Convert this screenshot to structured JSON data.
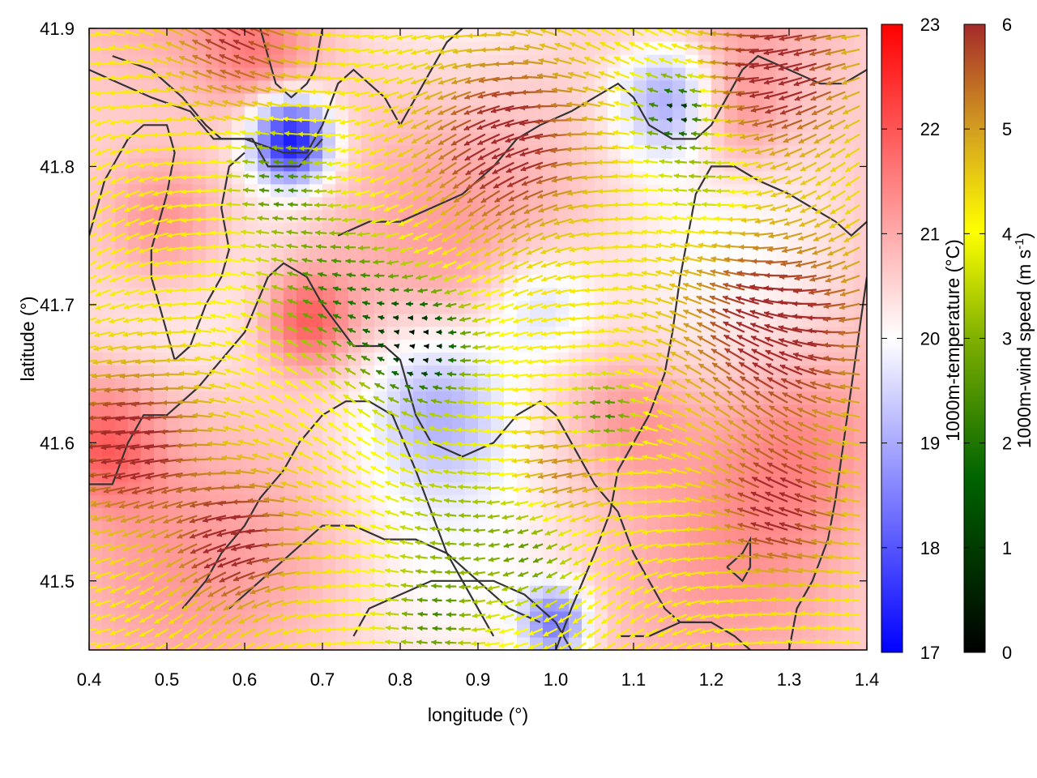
{
  "chart_data": {
    "type": "heatmap",
    "title": "",
    "xlabel": "longitude (°)",
    "ylabel": "latitude (°)",
    "xlim": [
      0.4,
      1.4
    ],
    "ylim": [
      41.45,
      41.9
    ],
    "x_ticks": [
      "0.4",
      "0.5",
      "0.6",
      "0.7",
      "0.8",
      "0.9",
      "1.0",
      "1.1",
      "1.2",
      "1.3",
      "1.4"
    ],
    "y_ticks": [
      "41.5",
      "41.6",
      "41.7",
      "41.8",
      "41.9"
    ],
    "grid": false,
    "temperature_colorbar": {
      "label": "1000m-temperature (°C)",
      "range": [
        17,
        23
      ],
      "ticks": [
        "17",
        "18",
        "19",
        "20",
        "21",
        "22",
        "23"
      ],
      "colors": [
        "#0000ff",
        "#ffffff",
        "#ff0000"
      ]
    },
    "windspeed_colorbar": {
      "label_main": "1000m-wind speed (m s",
      "label_sup": "-1",
      "label_end": ")",
      "range": [
        0,
        6
      ],
      "ticks": [
        "0",
        "1",
        "2",
        "3",
        "4",
        "5",
        "6"
      ],
      "colors": [
        "#000000",
        "#006400",
        "#7fb000",
        "#ffff00",
        "#d4a020",
        "#a52a2a"
      ]
    },
    "temperature_centers": [
      {
        "lon": 0.66,
        "lat": 41.82,
        "t": 17.3,
        "s": 0.035
      },
      {
        "lon": 0.85,
        "lat": 41.63,
        "t": 19.1,
        "s": 0.07
      },
      {
        "lon": 0.98,
        "lat": 41.7,
        "t": 19.5,
        "s": 0.05
      },
      {
        "lon": 1.0,
        "lat": 41.47,
        "t": 18.6,
        "s": 0.03
      },
      {
        "lon": 1.15,
        "lat": 41.85,
        "t": 18.8,
        "s": 0.05
      },
      {
        "lon": 0.68,
        "lat": 41.69,
        "t": 22.0,
        "s": 0.04
      },
      {
        "lon": 0.5,
        "lat": 41.76,
        "t": 21.8,
        "s": 0.06
      },
      {
        "lon": 0.42,
        "lat": 41.6,
        "t": 21.8,
        "s": 0.05
      },
      {
        "lon": 1.22,
        "lat": 41.84,
        "t": 21.6,
        "s": 0.05
      },
      {
        "lon": 1.32,
        "lat": 41.6,
        "t": 21.3,
        "s": 0.08
      },
      {
        "lon": 1.1,
        "lat": 41.62,
        "t": 21.2,
        "s": 0.05
      },
      {
        "lon": 0.7,
        "lat": 41.52,
        "t": 20.8,
        "s": 0.06
      },
      {
        "lon": 0.62,
        "lat": 41.88,
        "t": 21.4,
        "s": 0.05
      }
    ],
    "wind_base_speed": 3.8,
    "wind_centers": [
      {
        "lon": 0.83,
        "lat": 41.67,
        "v": 0.3,
        "s": 0.05
      },
      {
        "lon": 1.16,
        "lat": 41.84,
        "v": 0.4,
        "s": 0.03
      },
      {
        "lon": 0.72,
        "lat": 41.71,
        "v": 1.7,
        "s": 0.06
      },
      {
        "lon": 0.65,
        "lat": 41.79,
        "v": 1.8,
        "s": 0.04
      },
      {
        "lon": 0.88,
        "lat": 41.54,
        "v": 2.6,
        "s": 0.06
      },
      {
        "lon": 1.07,
        "lat": 41.62,
        "v": 1.6,
        "s": 0.03
      },
      {
        "lon": 0.98,
        "lat": 41.52,
        "v": 2.3,
        "s": 0.04
      },
      {
        "lon": 0.85,
        "lat": 41.47,
        "v": 2.0,
        "s": 0.04
      },
      {
        "lon": 1.2,
        "lat": 41.79,
        "v": 2.6,
        "s": 0.04
      },
      {
        "lon": 0.47,
        "lat": 41.6,
        "v": 6.5,
        "s": 0.06
      },
      {
        "lon": 0.6,
        "lat": 41.53,
        "v": 6.5,
        "s": 0.05
      },
      {
        "lon": 1.3,
        "lat": 41.68,
        "v": 6.6,
        "s": 0.08
      },
      {
        "lon": 0.95,
        "lat": 41.82,
        "v": 6.4,
        "s": 0.07
      },
      {
        "lon": 1.3,
        "lat": 41.87,
        "v": 6.5,
        "s": 0.06
      },
      {
        "lon": 1.3,
        "lat": 41.55,
        "v": 6.3,
        "s": 0.05
      },
      {
        "lon": 0.6,
        "lat": 41.89,
        "v": 6.0,
        "s": 0.05
      },
      {
        "lon": 1.02,
        "lat": 41.58,
        "v": 5.2,
        "s": 0.04
      }
    ],
    "contours": [
      [
        [
          0.4,
          41.87
        ],
        [
          0.44,
          41.86
        ],
        [
          0.48,
          41.85
        ],
        [
          0.53,
          41.84
        ],
        [
          0.56,
          41.82
        ],
        [
          0.6,
          41.82
        ],
        [
          0.65,
          41.81
        ],
        [
          0.68,
          41.81
        ],
        [
          0.7,
          41.83
        ],
        [
          0.72,
          41.86
        ],
        [
          0.74,
          41.87
        ],
        [
          0.76,
          41.86
        ],
        [
          0.78,
          41.85
        ],
        [
          0.8,
          41.83
        ],
        [
          0.82,
          41.85
        ],
        [
          0.84,
          41.87
        ],
        [
          0.86,
          41.89
        ],
        [
          0.88,
          41.9
        ]
      ],
      [
        [
          0.43,
          41.88
        ],
        [
          0.48,
          41.87
        ],
        [
          0.52,
          41.85
        ],
        [
          0.55,
          41.83
        ],
        [
          0.57,
          41.82
        ],
        [
          0.61,
          41.82
        ],
        [
          0.63,
          41.8
        ],
        [
          0.67,
          41.8
        ],
        [
          0.7,
          41.82
        ]
      ],
      [
        [
          0.62,
          41.9
        ],
        [
          0.63,
          41.88
        ],
        [
          0.64,
          41.86
        ],
        [
          0.66,
          41.85
        ],
        [
          0.68,
          41.86
        ],
        [
          0.69,
          41.87
        ],
        [
          0.7,
          41.9
        ]
      ],
      [
        [
          0.4,
          41.75
        ],
        [
          0.41,
          41.77
        ],
        [
          0.42,
          41.79
        ],
        [
          0.45,
          41.82
        ],
        [
          0.47,
          41.83
        ],
        [
          0.5,
          41.83
        ],
        [
          0.51,
          41.81
        ],
        [
          0.5,
          41.78
        ],
        [
          0.49,
          41.76
        ],
        [
          0.48,
          41.74
        ],
        [
          0.48,
          41.72
        ],
        [
          0.49,
          41.7
        ],
        [
          0.5,
          41.68
        ],
        [
          0.51,
          41.66
        ],
        [
          0.53,
          41.67
        ],
        [
          0.55,
          41.7
        ],
        [
          0.57,
          41.72
        ],
        [
          0.58,
          41.74
        ],
        [
          0.57,
          41.77
        ],
        [
          0.58,
          41.8
        ],
        [
          0.6,
          41.81
        ]
      ],
      [
        [
          0.4,
          41.57
        ],
        [
          0.43,
          41.57
        ],
        [
          0.45,
          41.6
        ],
        [
          0.47,
          41.62
        ],
        [
          0.5,
          41.62
        ],
        [
          0.54,
          41.64
        ],
        [
          0.57,
          41.66
        ],
        [
          0.6,
          41.68
        ],
        [
          0.63,
          41.72
        ],
        [
          0.65,
          41.73
        ],
        [
          0.68,
          41.72
        ],
        [
          0.7,
          41.7
        ],
        [
          0.74,
          41.67
        ],
        [
          0.78,
          41.67
        ],
        [
          0.8,
          41.66
        ],
        [
          0.82,
          41.62
        ],
        [
          0.84,
          41.6
        ],
        [
          0.88,
          41.59
        ],
        [
          0.92,
          41.6
        ],
        [
          0.95,
          41.62
        ],
        [
          0.98,
          41.63
        ],
        [
          1.0,
          41.62
        ],
        [
          1.02,
          41.6
        ],
        [
          1.05,
          41.57
        ],
        [
          1.08,
          41.55
        ],
        [
          1.1,
          41.52
        ],
        [
          1.12,
          41.5
        ],
        [
          1.14,
          41.48
        ],
        [
          1.16,
          41.47
        ],
        [
          1.18,
          41.47
        ]
      ],
      [
        [
          0.52,
          41.48
        ],
        [
          0.55,
          41.5
        ],
        [
          0.57,
          41.52
        ],
        [
          0.6,
          41.54
        ],
        [
          0.62,
          41.56
        ],
        [
          0.65,
          41.58
        ],
        [
          0.67,
          41.6
        ],
        [
          0.7,
          41.62
        ],
        [
          0.73,
          41.63
        ],
        [
          0.76,
          41.63
        ],
        [
          0.79,
          41.62
        ],
        [
          0.82,
          41.58
        ],
        [
          0.84,
          41.55
        ],
        [
          0.86,
          41.52
        ],
        [
          0.88,
          41.5
        ],
        [
          0.9,
          41.48
        ],
        [
          0.92,
          41.46
        ]
      ],
      [
        [
          0.58,
          41.48
        ],
        [
          0.62,
          41.5
        ],
        [
          0.66,
          41.52
        ],
        [
          0.7,
          41.54
        ],
        [
          0.74,
          41.54
        ],
        [
          0.78,
          41.53
        ],
        [
          0.82,
          41.53
        ],
        [
          0.86,
          41.52
        ],
        [
          0.9,
          41.5
        ],
        [
          0.94,
          41.48
        ],
        [
          0.98,
          41.47
        ]
      ],
      [
        [
          0.74,
          41.46
        ],
        [
          0.76,
          41.48
        ],
        [
          0.8,
          41.49
        ],
        [
          0.84,
          41.5
        ],
        [
          0.88,
          41.5
        ],
        [
          0.92,
          41.5
        ],
        [
          0.96,
          41.49
        ],
        [
          1.0,
          41.47
        ],
        [
          1.02,
          41.45
        ]
      ],
      [
        [
          0.72,
          41.75
        ],
        [
          0.76,
          41.76
        ],
        [
          0.8,
          41.76
        ],
        [
          0.84,
          41.77
        ],
        [
          0.88,
          41.78
        ],
        [
          0.92,
          41.8
        ],
        [
          0.95,
          41.82
        ],
        [
          0.98,
          41.83
        ],
        [
          1.02,
          41.84
        ],
        [
          1.05,
          41.85
        ],
        [
          1.08,
          41.86
        ],
        [
          1.1,
          41.85
        ],
        [
          1.12,
          41.83
        ],
        [
          1.15,
          41.82
        ],
        [
          1.18,
          41.82
        ],
        [
          1.2,
          41.83
        ],
        [
          1.22,
          41.85
        ],
        [
          1.24,
          41.87
        ],
        [
          1.26,
          41.88
        ],
        [
          1.3,
          41.87
        ],
        [
          1.34,
          41.86
        ],
        [
          1.37,
          41.86
        ],
        [
          1.4,
          41.87
        ]
      ],
      [
        [
          1.0,
          41.45
        ],
        [
          1.02,
          41.48
        ],
        [
          1.05,
          41.52
        ],
        [
          1.07,
          41.55
        ],
        [
          1.08,
          41.58
        ],
        [
          1.1,
          41.6
        ],
        [
          1.12,
          41.62
        ],
        [
          1.14,
          41.65
        ],
        [
          1.15,
          41.68
        ],
        [
          1.16,
          41.72
        ],
        [
          1.17,
          41.75
        ],
        [
          1.18,
          41.78
        ],
        [
          1.2,
          41.8
        ],
        [
          1.23,
          41.8
        ],
        [
          1.26,
          41.79
        ],
        [
          1.3,
          41.78
        ],
        [
          1.33,
          41.77
        ],
        [
          1.36,
          41.76
        ],
        [
          1.38,
          41.75
        ],
        [
          1.4,
          41.76
        ]
      ],
      [
        [
          1.3,
          41.45
        ],
        [
          1.31,
          41.48
        ],
        [
          1.33,
          41.5
        ],
        [
          1.35,
          41.53
        ],
        [
          1.36,
          41.56
        ],
        [
          1.37,
          41.6
        ],
        [
          1.38,
          41.64
        ],
        [
          1.39,
          41.68
        ],
        [
          1.4,
          41.72
        ]
      ],
      [
        [
          1.22,
          41.51
        ],
        [
          1.24,
          41.52
        ],
        [
          1.25,
          41.53
        ],
        [
          1.25,
          41.51
        ],
        [
          1.24,
          41.5
        ],
        [
          1.22,
          41.51
        ]
      ],
      [
        [
          1.08,
          41.46
        ],
        [
          1.12,
          41.46
        ],
        [
          1.16,
          41.47
        ],
        [
          1.2,
          41.47
        ],
        [
          1.23,
          41.46
        ],
        [
          1.25,
          41.45
        ]
      ]
    ]
  }
}
